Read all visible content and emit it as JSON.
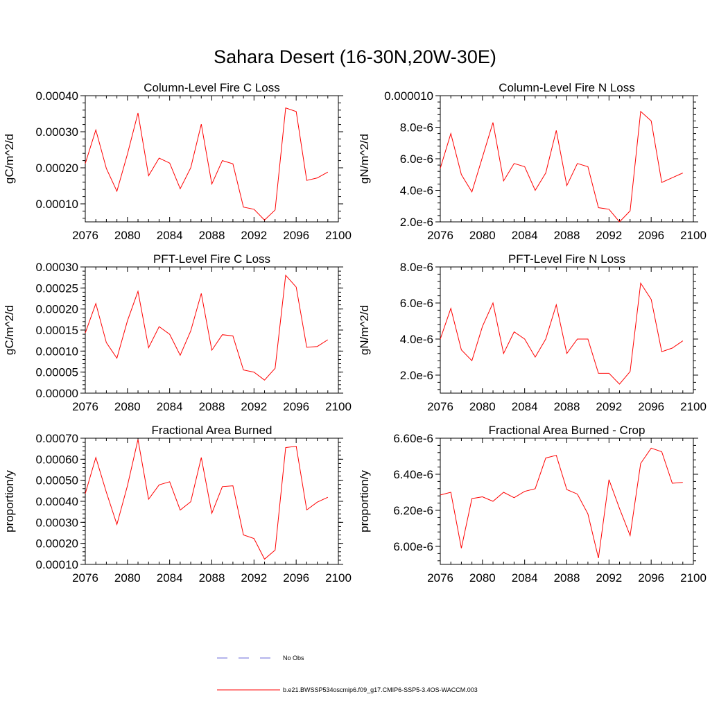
{
  "figure": {
    "title": "Sahara Desert (16-30N,20W-30E)",
    "series_color": "#ff0000",
    "obs_color": "#6a6ad8"
  },
  "legend": {
    "obs_label": "No Obs",
    "model_label": "b.e21.BWSSP534oscmip6.f09_g17.CMIP6-SSP5-3.4OS-WACCM.003"
  },
  "chart_data": [
    {
      "type": "line",
      "title": "Column-Level Fire C Loss",
      "ylabel": "gC/m^2/d",
      "xlim": [
        2076,
        2100
      ],
      "ylim": [
        5e-05,
        0.0004
      ],
      "xticks": [
        2076,
        2080,
        2084,
        2088,
        2092,
        2096,
        2100
      ],
      "xtick_labels": [
        "2076",
        "2080",
        "2084",
        "2088",
        "2092",
        "2096",
        "2100"
      ],
      "yticks": [
        0.0001,
        0.0002,
        0.0003,
        0.0004
      ],
      "ytick_labels": [
        "0.00010",
        "0.00020",
        "0.00030",
        "0.00040"
      ],
      "x": [
        2076,
        2077,
        2078,
        2079,
        2080,
        2081,
        2082,
        2083,
        2084,
        2085,
        2086,
        2087,
        2088,
        2089,
        2090,
        2091,
        2092,
        2093,
        2094,
        2095,
        2096,
        2097,
        2098,
        2099
      ],
      "series": [
        {
          "values": [
            0.000212,
            0.000305,
            0.000198,
            0.000135,
            0.000238,
            0.000352,
            0.000178,
            0.000227,
            0.000213,
            0.000142,
            0.0002,
            0.000321,
            0.000155,
            0.00022,
            0.000211,
            9.1e-05,
            8.5e-05,
            5.5e-05,
            8.3e-05,
            0.000366,
            0.000356,
            0.000165,
            0.000172,
            0.000188
          ]
        }
      ]
    },
    {
      "type": "line",
      "title": "Column-Level Fire N Loss",
      "ylabel": "gN/m^2/d",
      "xlim": [
        2076,
        2100
      ],
      "ylim": [
        2e-06,
        1e-05
      ],
      "xticks": [
        2076,
        2080,
        2084,
        2088,
        2092,
        2096,
        2100
      ],
      "xtick_labels": [
        "2076",
        "2080",
        "2084",
        "2088",
        "2092",
        "2096",
        "2100"
      ],
      "yticks": [
        2e-06,
        4e-06,
        6e-06,
        8e-06,
        1e-05
      ],
      "ytick_labels": [
        "2.0e-6",
        "4.0e-6",
        "6.0e-6",
        "8.0e-6",
        "0.000010"
      ],
      "x": [
        2076,
        2077,
        2078,
        2079,
        2080,
        2081,
        2082,
        2083,
        2084,
        2085,
        2086,
        2087,
        2088,
        2089,
        2090,
        2091,
        2092,
        2093,
        2094,
        2095,
        2096,
        2097,
        2098,
        2099
      ],
      "series": [
        {
          "values": [
            5.4e-06,
            7.6e-06,
            5e-06,
            3.9e-06,
            6.1e-06,
            8.3e-06,
            4.6e-06,
            5.7e-06,
            5.5e-06,
            4e-06,
            5.1e-06,
            7.8e-06,
            4.3e-06,
            5.7e-06,
            5.5e-06,
            2.9e-06,
            2.8e-06,
            2e-06,
            2.7e-06,
            9e-06,
            8.4e-06,
            4.5e-06,
            4.8e-06,
            5.1e-06
          ]
        }
      ]
    },
    {
      "type": "line",
      "title": "PFT-Level Fire C Loss",
      "ylabel": "gC/m^2/d",
      "xlim": [
        2076,
        2100
      ],
      "ylim": [
        0,
        0.0003
      ],
      "xticks": [
        2076,
        2080,
        2084,
        2088,
        2092,
        2096,
        2100
      ],
      "xtick_labels": [
        "2076",
        "2080",
        "2084",
        "2088",
        "2092",
        "2096",
        "2100"
      ],
      "yticks": [
        0,
        5e-05,
        0.0001,
        0.00015,
        0.0002,
        0.00025,
        0.0003
      ],
      "ytick_labels": [
        "0.00000",
        "0.00005",
        "0.00010",
        "0.00015",
        "0.00020",
        "0.00025",
        "0.00030"
      ],
      "x": [
        2076,
        2077,
        2078,
        2079,
        2080,
        2081,
        2082,
        2083,
        2084,
        2085,
        2086,
        2087,
        2088,
        2089,
        2090,
        2091,
        2092,
        2093,
        2094,
        2095,
        2096,
        2097,
        2098,
        2099
      ],
      "series": [
        {
          "values": [
            0.000143,
            0.000213,
            0.00012,
            8.3e-05,
            0.000172,
            0.000242,
            0.000108,
            0.000158,
            0.00014,
            9e-05,
            0.000148,
            0.000237,
            0.000102,
            0.000139,
            0.000136,
            5.5e-05,
            5e-05,
            3.1e-05,
            5.9e-05,
            0.00028,
            0.000252,
            0.000109,
            0.000111,
            0.000127
          ]
        }
      ]
    },
    {
      "type": "line",
      "title": "PFT-Level Fire N Loss",
      "ylabel": "gN/m^2/d",
      "xlim": [
        2076,
        2100
      ],
      "ylim": [
        1e-06,
        8e-06
      ],
      "xticks": [
        2076,
        2080,
        2084,
        2088,
        2092,
        2096,
        2100
      ],
      "xtick_labels": [
        "2076",
        "2080",
        "2084",
        "2088",
        "2092",
        "2096",
        "2100"
      ],
      "yticks": [
        2e-06,
        4e-06,
        6e-06,
        8e-06
      ],
      "ytick_labels": [
        "2.0e-6",
        "4.0e-6",
        "6.0e-6",
        "8.0e-6"
      ],
      "x": [
        2076,
        2077,
        2078,
        2079,
        2080,
        2081,
        2082,
        2083,
        2084,
        2085,
        2086,
        2087,
        2088,
        2089,
        2090,
        2091,
        2092,
        2093,
        2094,
        2095,
        2096,
        2097,
        2098,
        2099
      ],
      "series": [
        {
          "values": [
            4e-06,
            5.7e-06,
            3.4e-06,
            2.8e-06,
            4.7e-06,
            6e-06,
            3.2e-06,
            4.4e-06,
            4e-06,
            3e-06,
            4e-06,
            5.9e-06,
            3.2e-06,
            4e-06,
            4e-06,
            2.1e-06,
            2.1e-06,
            1.5e-06,
            2.2e-06,
            7.1e-06,
            6.2e-06,
            3.3e-06,
            3.5e-06,
            3.9e-06
          ]
        }
      ]
    },
    {
      "type": "line",
      "title": "Fractional Area Burned",
      "ylabel": "proportion/y",
      "xlim": [
        2076,
        2100
      ],
      "ylim": [
        0.0001,
        0.0007
      ],
      "xticks": [
        2076,
        2080,
        2084,
        2088,
        2092,
        2096,
        2100
      ],
      "xtick_labels": [
        "2076",
        "2080",
        "2084",
        "2088",
        "2092",
        "2096",
        "2100"
      ],
      "yticks": [
        0.0001,
        0.0002,
        0.0003,
        0.0004,
        0.0005,
        0.0006,
        0.0007
      ],
      "ytick_labels": [
        "0.00010",
        "0.00020",
        "0.00030",
        "0.00040",
        "0.00050",
        "0.00060",
        "0.00070"
      ],
      "x": [
        2076,
        2077,
        2078,
        2079,
        2080,
        2081,
        2082,
        2083,
        2084,
        2085,
        2086,
        2087,
        2088,
        2089,
        2090,
        2091,
        2092,
        2093,
        2094,
        2095,
        2096,
        2097,
        2098,
        2099
      ],
      "series": [
        {
          "values": [
            0.000437,
            0.000608,
            0.000443,
            0.00029,
            0.000474,
            0.000694,
            0.00041,
            0.000478,
            0.000493,
            0.000358,
            0.000398,
            0.000608,
            0.000343,
            0.00047,
            0.000474,
            0.00024,
            0.000223,
            0.000125,
            0.000168,
            0.000655,
            0.000662,
            0.000359,
            0.000396,
            0.000419
          ]
        }
      ]
    },
    {
      "type": "line",
      "title": "Fractional Area Burned - Crop",
      "ylabel": "proportion/y",
      "xlim": [
        2076,
        2100
      ],
      "ylim": [
        5.9e-06,
        6.6e-06
      ],
      "xticks": [
        2076,
        2080,
        2084,
        2088,
        2092,
        2096,
        2100
      ],
      "xtick_labels": [
        "2076",
        "2080",
        "2084",
        "2088",
        "2092",
        "2096",
        "2100"
      ],
      "yticks": [
        6e-06,
        6.2e-06,
        6.4e-06,
        6.6e-06
      ],
      "ytick_labels": [
        "6.00e-6",
        "6.20e-6",
        "6.40e-6",
        "6.60e-6"
      ],
      "x": [
        2076,
        2077,
        2078,
        2079,
        2080,
        2081,
        2082,
        2083,
        2084,
        2085,
        2086,
        2087,
        2088,
        2089,
        2090,
        2091,
        2092,
        2093,
        2094,
        2095,
        2096,
        2097,
        2098,
        2099
      ],
      "series": [
        {
          "values": [
            6.285e-06,
            6.3e-06,
            5.99e-06,
            6.265e-06,
            6.275e-06,
            6.25e-06,
            6.3e-06,
            6.27e-06,
            6.305e-06,
            6.32e-06,
            6.49e-06,
            6.505e-06,
            6.315e-06,
            6.29e-06,
            6.18e-06,
            5.935e-06,
            6.37e-06,
            6.21e-06,
            6.06e-06,
            6.46e-06,
            6.545e-06,
            6.525e-06,
            6.35e-06,
            6.355e-06
          ]
        }
      ]
    }
  ]
}
